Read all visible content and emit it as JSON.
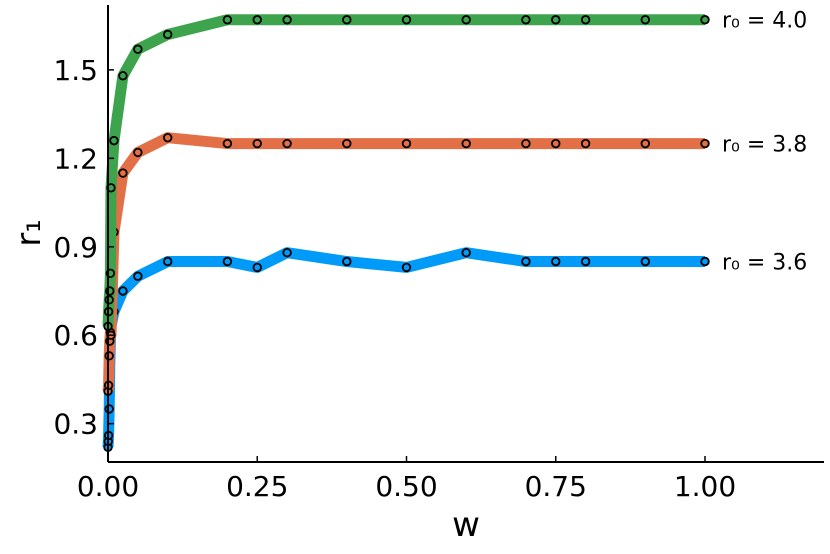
{
  "chart_data": {
    "type": "line",
    "title": "",
    "xlabel": "w",
    "ylabel": "r₁",
    "xlim": [
      0,
      1.2
    ],
    "ylim": [
      0.17,
      1.72
    ],
    "xticks": [
      0.0,
      0.25,
      0.5,
      0.75,
      1.0
    ],
    "xtick_labels": [
      "0.00",
      "0.25",
      "0.50",
      "0.75",
      "1.00"
    ],
    "yticks": [
      0.3,
      0.6,
      0.9,
      1.2,
      1.5
    ],
    "ytick_labels": [
      "0.3",
      "0.6",
      "0.9",
      "1.2",
      "1.5"
    ],
    "grid": false,
    "legend": "none",
    "markers": "open circles",
    "series": [
      {
        "label": "r₀ = 3.6",
        "color": "#009af9",
        "x": [
          0.0,
          0.0005,
          0.001,
          0.002,
          0.003,
          0.004,
          0.005,
          0.01,
          0.025,
          0.05,
          0.1,
          0.2,
          0.25,
          0.3,
          0.4,
          0.5,
          0.6,
          0.7,
          0.75,
          0.8,
          0.9,
          1.0
        ],
        "y": [
          0.22,
          0.24,
          0.26,
          0.35,
          0.5,
          0.58,
          0.63,
          0.68,
          0.75,
          0.8,
          0.85,
          0.85,
          0.83,
          0.88,
          0.85,
          0.83,
          0.88,
          0.85,
          0.85,
          0.85,
          0.85,
          0.85
        ]
      },
      {
        "label": "r₀ = 3.8",
        "color": "#e26f46",
        "x": [
          0.0,
          0.001,
          0.002,
          0.003,
          0.004,
          0.005,
          0.01,
          0.025,
          0.05,
          0.1,
          0.2,
          0.25,
          0.3,
          0.4,
          0.5,
          0.6,
          0.7,
          0.75,
          0.8,
          0.9,
          1.0
        ],
        "y": [
          0.41,
          0.43,
          0.53,
          0.58,
          0.61,
          0.6,
          0.95,
          1.15,
          1.22,
          1.27,
          1.25,
          1.25,
          1.25,
          1.25,
          1.25,
          1.25,
          1.25,
          1.25,
          1.25,
          1.25,
          1.25
        ]
      },
      {
        "label": "r₀ = 4.0",
        "color": "#3da44d",
        "x": [
          0.0,
          0.001,
          0.002,
          0.003,
          0.004,
          0.005,
          0.01,
          0.025,
          0.05,
          0.1,
          0.2,
          0.25,
          0.3,
          0.4,
          0.5,
          0.6,
          0.7,
          0.75,
          0.8,
          0.9,
          1.0
        ],
        "y": [
          0.63,
          0.68,
          0.72,
          0.75,
          0.81,
          1.1,
          1.26,
          1.48,
          1.57,
          1.62,
          1.67,
          1.67,
          1.67,
          1.67,
          1.67,
          1.67,
          1.67,
          1.67,
          1.67,
          1.67,
          1.67
        ]
      }
    ]
  }
}
